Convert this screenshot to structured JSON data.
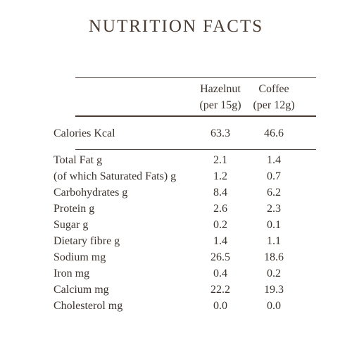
{
  "title": "NUTRITION FACTS",
  "header": {
    "columns": [
      {
        "name": "Hazelnut",
        "unit": "(per 15g)"
      },
      {
        "name": "Coffee",
        "unit": "(per 12g)"
      }
    ]
  },
  "calories": {
    "label": "Calories Kcal",
    "values": [
      "63.3",
      "46.6"
    ]
  },
  "table": {
    "rows": [
      [
        "Total Fat g",
        "2.1",
        "1.4"
      ],
      [
        "(of which Saturated Fats) g",
        "1.2",
        "0.7"
      ],
      [
        "Carbohydrates g",
        "8.4",
        "6.2"
      ],
      [
        "Protein g",
        "2.6",
        "2.3"
      ],
      [
        "Sugar g",
        "0.2",
        "0.1"
      ],
      [
        "Dietary fibre g",
        "1.4",
        "1.1"
      ],
      [
        "Sodium mg",
        "26.5",
        "18.6"
      ],
      [
        "Iron mg",
        "0.4",
        "0.2"
      ],
      [
        "Calcium mg",
        "22.2",
        "19.3"
      ],
      [
        "Cholesterol mg",
        "0.0",
        "0.0"
      ]
    ]
  }
}
